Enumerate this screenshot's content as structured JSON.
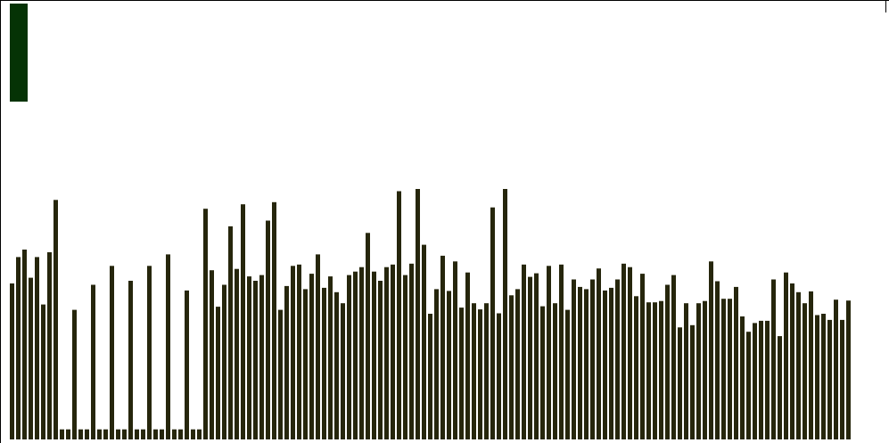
{
  "colors": {
    "background": "#ffffff",
    "bar": "#26260c",
    "legend_swatch": "#053305",
    "frame": "#000000"
  },
  "chart_data": {
    "type": "bar",
    "title": "",
    "xlabel": "",
    "ylabel": "",
    "ylim": [
      0,
      100
    ],
    "legend": {
      "placement": "top-left",
      "entries": [
        ""
      ]
    },
    "series": [
      {
        "values": [
          35.5,
          41.5,
          43.2,
          36.8,
          41.5,
          30.7,
          42.6,
          54.5,
          2.3,
          2.3,
          29.5,
          2.3,
          2.3,
          35.2,
          2.3,
          2.3,
          39.5,
          2.3,
          2.3,
          36.1,
          2.3,
          2.3,
          39.5,
          2.3,
          2.3,
          42.1,
          2.3,
          2.3,
          33.9,
          2.3,
          2.3,
          52.5,
          38.5,
          30.2,
          35.2,
          48.5,
          38.8,
          53.5,
          37.1,
          36.1,
          37.4,
          49.8,
          54.0,
          29.5,
          34.9,
          39.5,
          39.8,
          34.2,
          37.7,
          42.1,
          34.5,
          37.1,
          33.5,
          31.0,
          37.4,
          38.2,
          39.2,
          47.0,
          38.2,
          36.1,
          39.2,
          39.8,
          56.5,
          37.4,
          40.0,
          57.0,
          44.3,
          28.6,
          34.2,
          41.8,
          33.8,
          40.5,
          30.0,
          38.0,
          31.0,
          29.6,
          31.0,
          52.8,
          28.7,
          57.0,
          32.8,
          34.2,
          39.8,
          37.0,
          37.8,
          30.3,
          39.5,
          31.0,
          39.8,
          29.5,
          36.4,
          34.7,
          34.2,
          36.4,
          38.9,
          33.9,
          34.5,
          36.4,
          40.0,
          39.2,
          32.6,
          37.7,
          31.2,
          31.2,
          31.5,
          35.2,
          37.4,
          25.5,
          31.0,
          26.0,
          31.0,
          31.5,
          40.5,
          36.0,
          32.0,
          32.0,
          34.7,
          28.0,
          24.5,
          26.5,
          27.0,
          27.0,
          36.4,
          23.5,
          38.0,
          35.5,
          33.5,
          31.0,
          33.7,
          28.3,
          28.6,
          27.2,
          31.8,
          27.2,
          31.6
        ]
      }
    ]
  }
}
